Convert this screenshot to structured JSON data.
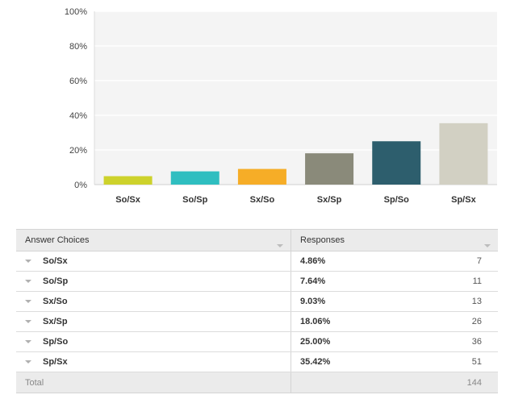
{
  "chart_data": {
    "type": "bar",
    "categories": [
      "So/Sx",
      "So/Sp",
      "Sx/So",
      "Sx/Sp",
      "Sp/So",
      "Sp/Sx"
    ],
    "values": [
      4.86,
      7.64,
      9.03,
      18.06,
      25.0,
      35.42
    ],
    "colors": [
      "#cdd22c",
      "#2fbec0",
      "#f6ad27",
      "#8a8a7a",
      "#2d5e6d",
      "#d2d0c3"
    ],
    "yticks": [
      "0%",
      "20%",
      "40%",
      "60%",
      "80%",
      "100%"
    ],
    "ylim": [
      0,
      100
    ],
    "grid": true
  },
  "table": {
    "header": {
      "choices": "Answer Choices",
      "responses": "Responses"
    },
    "rows": [
      {
        "choice": "So/Sx",
        "percent": "4.86%",
        "count": "7"
      },
      {
        "choice": "So/Sp",
        "percent": "7.64%",
        "count": "11"
      },
      {
        "choice": "Sx/So",
        "percent": "9.03%",
        "count": "13"
      },
      {
        "choice": "Sx/Sp",
        "percent": "18.06%",
        "count": "26"
      },
      {
        "choice": "Sp/So",
        "percent": "25.00%",
        "count": "36"
      },
      {
        "choice": "Sp/Sx",
        "percent": "35.42%",
        "count": "51"
      }
    ],
    "footer": {
      "label": "Total",
      "count": "144"
    }
  }
}
